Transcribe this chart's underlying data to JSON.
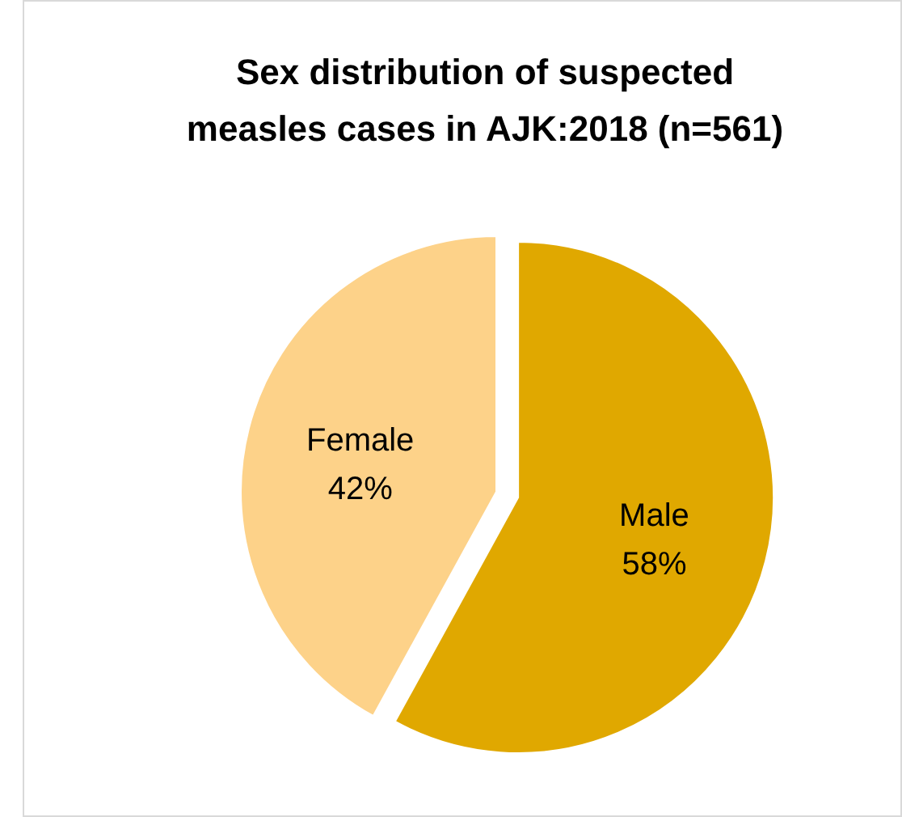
{
  "chart_data": {
    "type": "pie",
    "title": "Sex distribution of suspected measles cases in AJK:2018 (n=561)",
    "categories": [
      "Male",
      "Female"
    ],
    "values": [
      58,
      42
    ],
    "colors": [
      "#e0a800",
      "#fdd289"
    ],
    "value_labels": [
      "58%",
      "42%"
    ]
  }
}
